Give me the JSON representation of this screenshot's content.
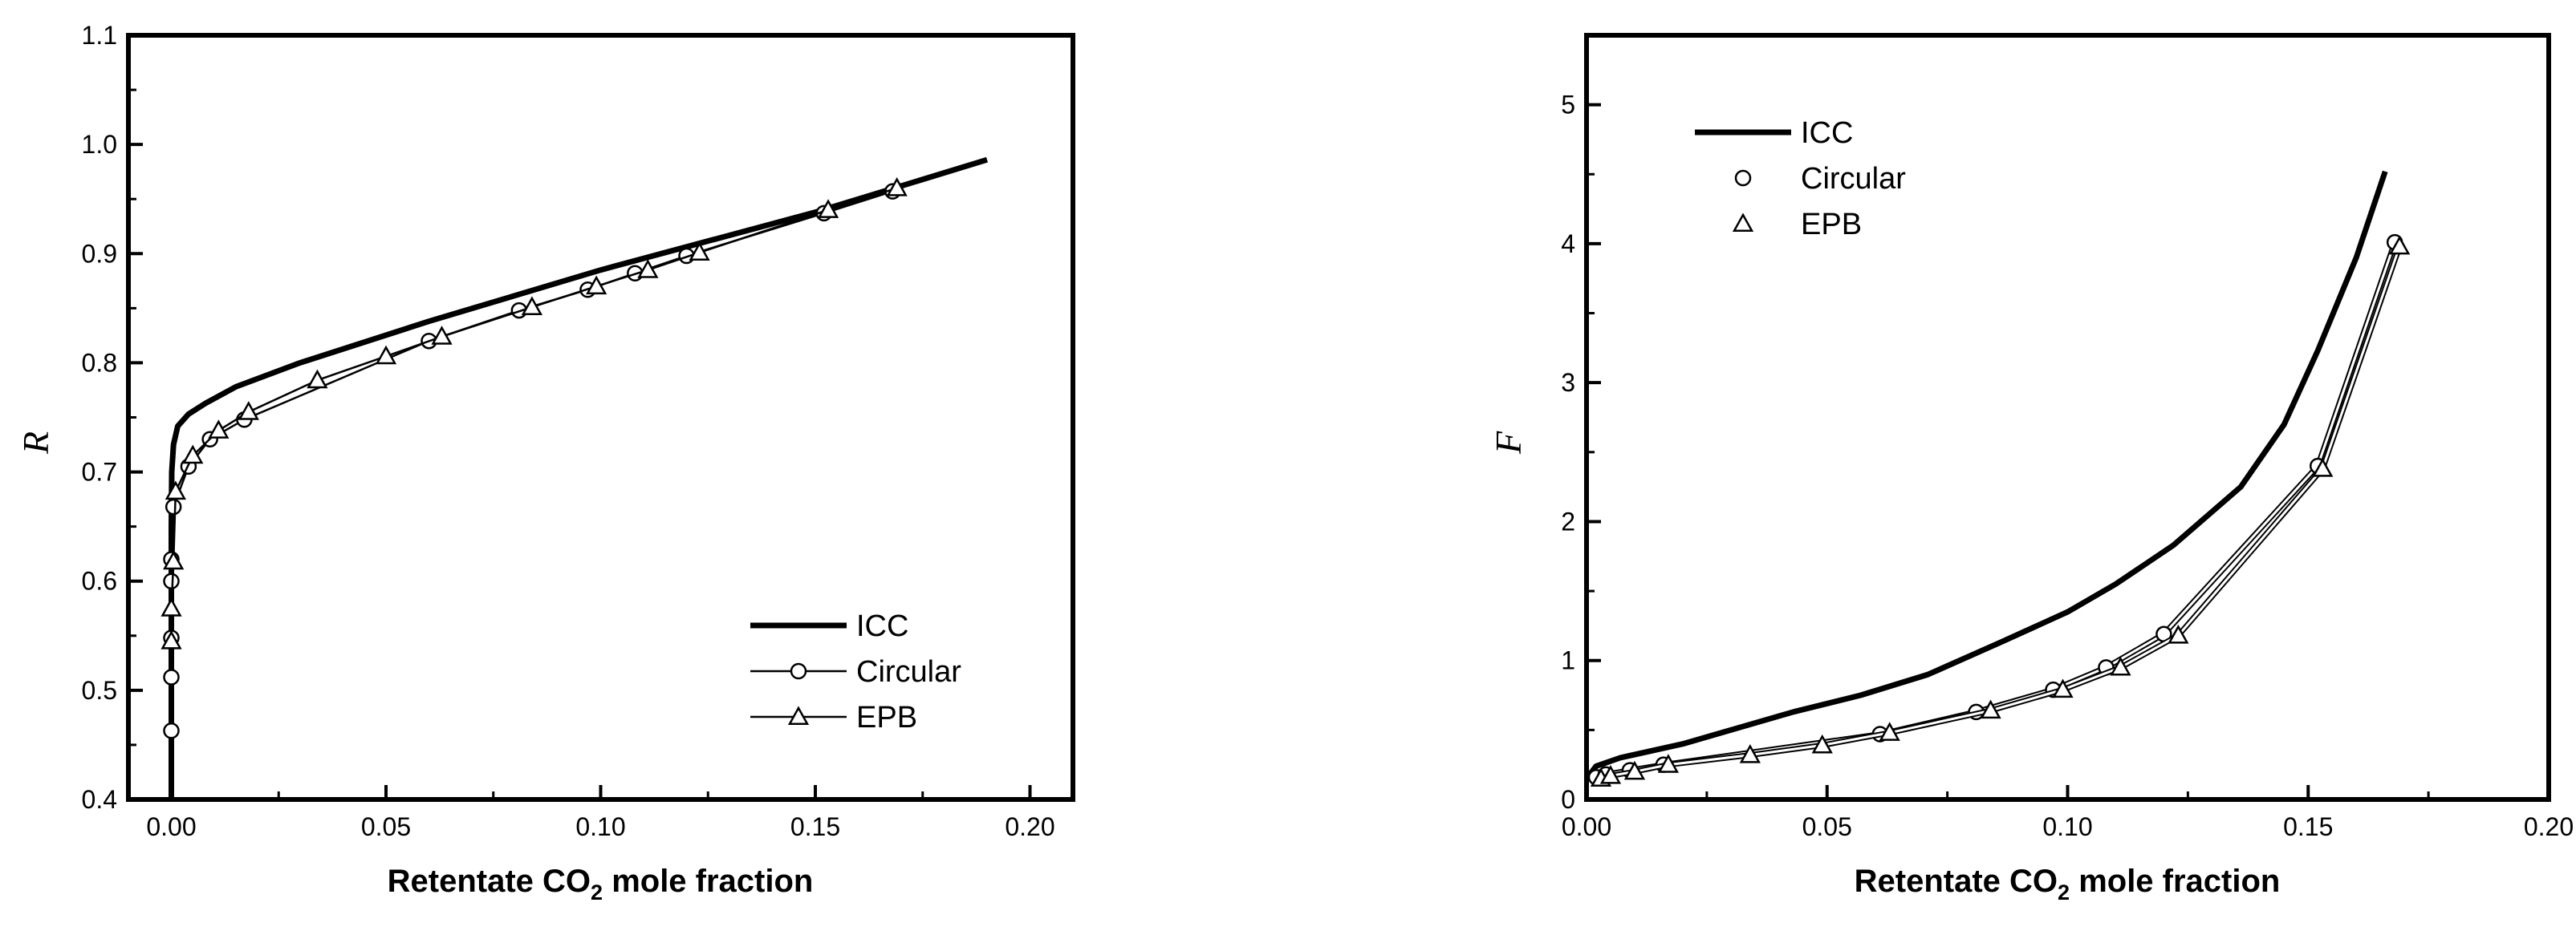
{
  "chart_data": [
    {
      "type": "line",
      "xlabel": "Retentate CO",
      "xlabel_sub": "2",
      "xlabel_tail": " mole fraction",
      "ylabel": "R",
      "xlim": [
        -0.01,
        0.21
      ],
      "ylim": [
        0.4,
        1.1
      ],
      "xticks": [
        "0.00",
        "0.05",
        "0.10",
        "0.15",
        "0.20"
      ],
      "xtick_values": [
        0.0,
        0.05,
        0.1,
        0.15,
        0.2
      ],
      "yticks": [
        "0.4",
        "0.5",
        "0.6",
        "0.7",
        "0.8",
        "0.9",
        "1.0",
        "1.1"
      ],
      "ytick_values": [
        0.4,
        0.5,
        0.6,
        0.7,
        0.8,
        0.9,
        1.0,
        1.1
      ],
      "legend_position": "bottom-right",
      "series": [
        {
          "name": "ICC",
          "style": "thick",
          "marker": "none",
          "x": [
            0.0,
            0.0,
            0.0001,
            0.0005,
            0.0015,
            0.004,
            0.008,
            0.015,
            0.03,
            0.06,
            0.1,
            0.15,
            0.19
          ],
          "y": [
            0.4,
            0.65,
            0.7,
            0.725,
            0.742,
            0.753,
            0.763,
            0.778,
            0.8,
            0.838,
            0.885,
            0.938,
            0.986
          ]
        },
        {
          "name": "Circular",
          "style": "thin",
          "marker": "circle",
          "x": [
            0.0,
            0.0,
            0.0,
            0.0,
            0.0,
            0.0005,
            0.004,
            0.009,
            0.017,
            0.06,
            0.081,
            0.097,
            0.108,
            0.12,
            0.152,
            0.168
          ],
          "y": [
            0.463,
            0.512,
            0.548,
            0.6,
            0.62,
            0.668,
            0.705,
            0.73,
            0.748,
            0.82,
            0.848,
            0.867,
            0.882,
            0.898,
            0.937,
            0.957
          ]
        },
        {
          "name": "EPB",
          "style": "thin",
          "marker": "triangle",
          "x": [
            0.0,
            0.0,
            0.0005,
            0.001,
            0.005,
            0.011,
            0.018,
            0.034,
            0.05,
            0.063,
            0.084,
            0.099,
            0.111,
            0.123,
            0.153,
            0.169
          ],
          "y": [
            0.545,
            0.575,
            0.618,
            0.682,
            0.715,
            0.738,
            0.755,
            0.784,
            0.806,
            0.824,
            0.851,
            0.87,
            0.885,
            0.901,
            0.94,
            0.96
          ]
        }
      ]
    },
    {
      "type": "line",
      "xlabel": "Retentate CO",
      "xlabel_sub": "2",
      "xlabel_tail": " mole fraction",
      "ylabel": "F",
      "xlim": [
        0.0,
        0.2
      ],
      "ylim": [
        0,
        5.5
      ],
      "xticks": [
        "0.00",
        "0.05",
        "0.10",
        "0.15",
        "0.20"
      ],
      "xtick_values": [
        0.0,
        0.05,
        0.1,
        0.15,
        0.2
      ],
      "yticks": [
        "0",
        "1",
        "2",
        "3",
        "4",
        "5"
      ],
      "ytick_values": [
        0,
        1,
        2,
        3,
        4,
        5
      ],
      "legend_position": "top-left",
      "series": [
        {
          "name": "ICC",
          "style": "thick",
          "marker": "none",
          "x": [
            0.0,
            0.002,
            0.007,
            0.02,
            0.03,
            0.043,
            0.057,
            0.071,
            0.086,
            0.1,
            0.11,
            0.122,
            0.136,
            0.145,
            0.152,
            0.16,
            0.166
          ],
          "y": [
            0.15,
            0.24,
            0.3,
            0.4,
            0.5,
            0.63,
            0.75,
            0.9,
            1.13,
            1.35,
            1.55,
            1.83,
            2.25,
            2.7,
            3.23,
            3.9,
            4.52
          ]
        },
        {
          "name": "Circular",
          "style": "double",
          "marker": "circle",
          "x": [
            0.002,
            0.004,
            0.009,
            0.016,
            0.061,
            0.081,
            0.097,
            0.108,
            0.12,
            0.152,
            0.168
          ],
          "y": [
            0.16,
            0.18,
            0.21,
            0.25,
            0.47,
            0.63,
            0.79,
            0.95,
            1.19,
            2.4,
            4.01
          ]
        },
        {
          "name": "EPB",
          "style": "double",
          "marker": "triangle",
          "x": [
            0.003,
            0.005,
            0.01,
            0.017,
            0.034,
            0.049,
            0.063,
            0.084,
            0.099,
            0.111,
            0.123,
            0.153,
            0.169
          ],
          "y": [
            0.15,
            0.17,
            0.2,
            0.25,
            0.32,
            0.39,
            0.48,
            0.64,
            0.79,
            0.95,
            1.18,
            2.38,
            3.98
          ]
        }
      ]
    }
  ]
}
